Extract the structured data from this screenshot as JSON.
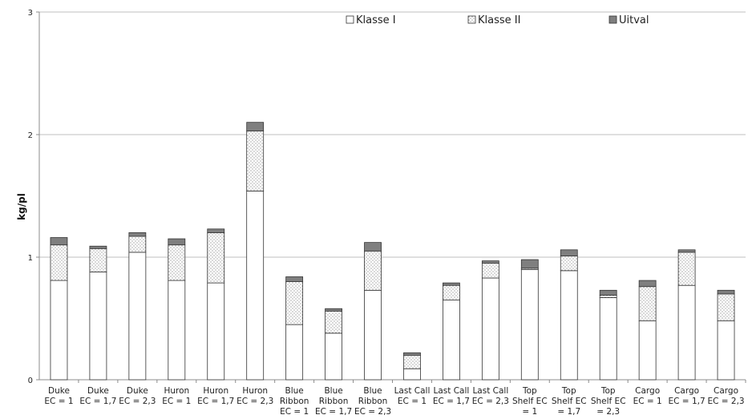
{
  "chart_data": {
    "type": "bar",
    "stacked": true,
    "ylabel": "kg/pl",
    "ylim": [
      0,
      3
    ],
    "yticks": [
      "0",
      "1",
      "2",
      "3"
    ],
    "grid": true,
    "legend_position": "top-right",
    "categories": [
      [
        "Duke",
        "EC = 1"
      ],
      [
        "Duke",
        "EC = 1,7"
      ],
      [
        "Duke",
        "EC = 2,3"
      ],
      [
        "Huron",
        "EC = 1"
      ],
      [
        "Huron",
        "EC = 1,7"
      ],
      [
        "Huron",
        "EC = 2,3"
      ],
      [
        "Blue",
        "Ribbon",
        "EC = 1"
      ],
      [
        "Blue",
        "Ribbon",
        "EC = 1,7"
      ],
      [
        "Blue",
        "Ribbon",
        "EC = 2,3"
      ],
      [
        "Last Call",
        "EC = 1"
      ],
      [
        "Last Call",
        "EC = 1,7"
      ],
      [
        "Last Call",
        "EC = 2,3"
      ],
      [
        "Top",
        "Shelf EC",
        "= 1"
      ],
      [
        "Top",
        "Shelf EC",
        "= 1,7"
      ],
      [
        "Top",
        "Shelf EC",
        "= 2,3"
      ],
      [
        "Cargo",
        "EC = 1"
      ],
      [
        "Cargo",
        "EC = 1,7"
      ],
      [
        "Cargo",
        "EC = 2,3"
      ]
    ],
    "series": [
      {
        "name": "Klasse I",
        "pattern": "white",
        "values": [
          0.81,
          0.88,
          1.04,
          0.81,
          0.79,
          1.54,
          0.45,
          0.38,
          0.73,
          0.09,
          0.65,
          0.83,
          0.9,
          0.89,
          0.67,
          0.48,
          0.77,
          0.48
        ]
      },
      {
        "name": "Klasse II",
        "pattern": "dots",
        "values": [
          0.29,
          0.19,
          0.13,
          0.29,
          0.41,
          0.49,
          0.35,
          0.18,
          0.32,
          0.11,
          0.12,
          0.12,
          0.01,
          0.12,
          0.02,
          0.28,
          0.27,
          0.22
        ]
      },
      {
        "name": "Uitval",
        "pattern": "gray",
        "values": [
          0.06,
          0.02,
          0.03,
          0.05,
          0.03,
          0.07,
          0.04,
          0.02,
          0.07,
          0.02,
          0.02,
          0.02,
          0.07,
          0.05,
          0.04,
          0.05,
          0.02,
          0.03
        ]
      }
    ],
    "colors": {
      "uitval_fill": "#7f7f7f",
      "dots": "#7a7a7a",
      "grid": "#bfbfbf",
      "axis": "#8c8c8c",
      "outline": "#333333"
    }
  }
}
